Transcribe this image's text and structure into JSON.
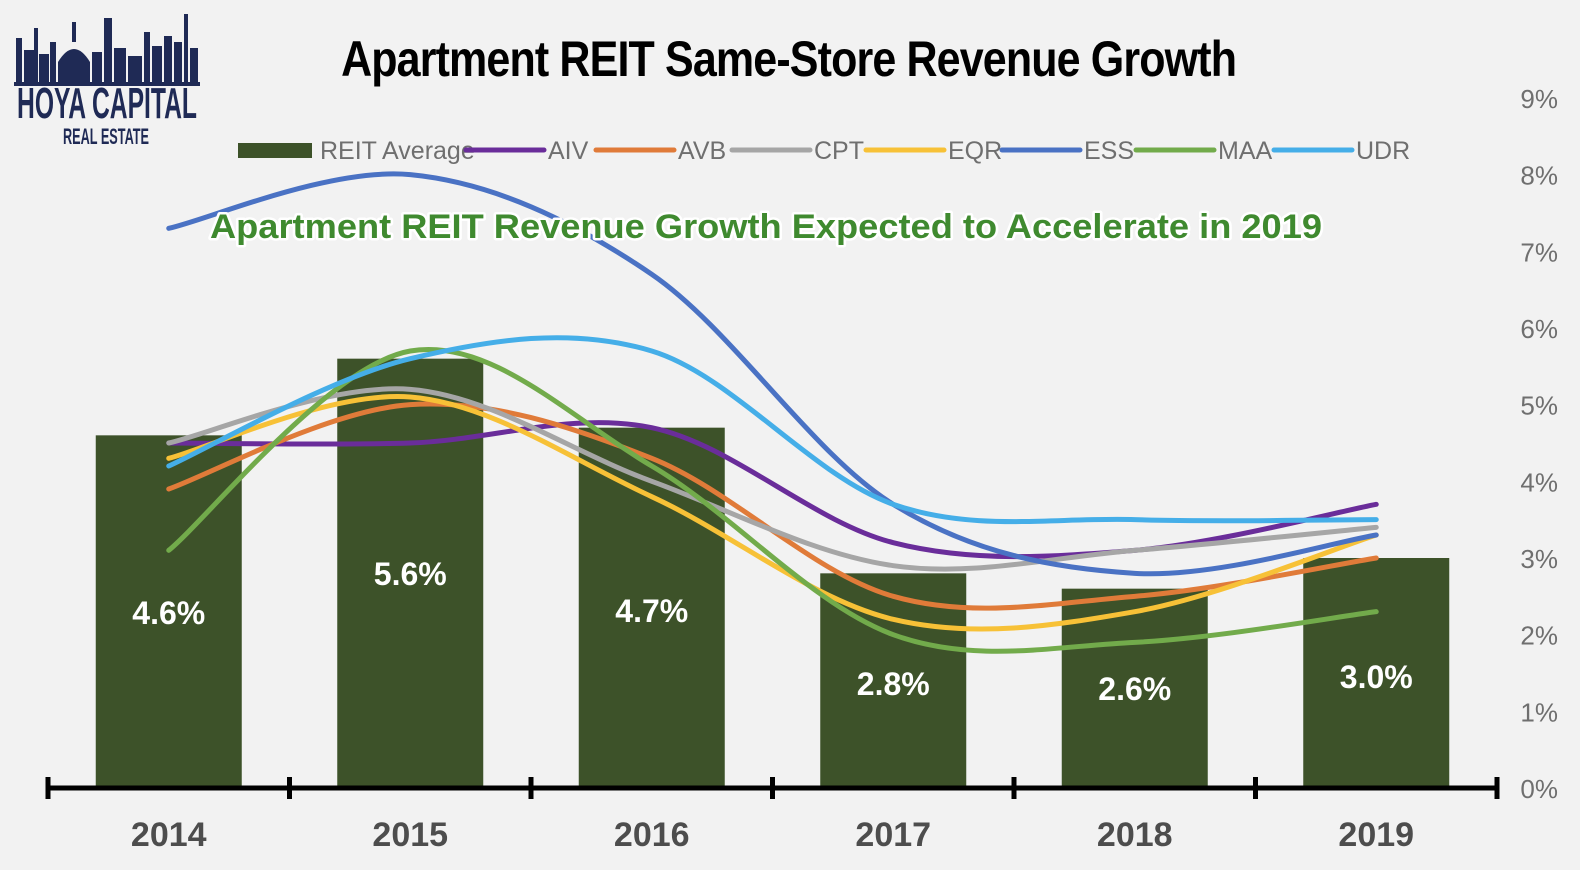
{
  "brand": {
    "name": "HOYA CAPITAL",
    "tagline": "REAL ESTATE"
  },
  "chart_data": {
    "type": "bar",
    "title": "Apartment REIT Same-Store Revenue Growth",
    "subtitle": "Apartment REIT Revenue Growth Expected to Accelerate in 2019",
    "categories": [
      "2014",
      "2015",
      "2016",
      "2017",
      "2018",
      "2019"
    ],
    "bar_series": {
      "name": "REIT Average",
      "values": [
        4.6,
        5.6,
        4.7,
        2.8,
        2.6,
        3.0
      ],
      "labels": [
        "4.6%",
        "5.6%",
        "4.7%",
        "2.8%",
        "2.6%",
        "3.0%"
      ],
      "color": "#3d5229"
    },
    "line_series": [
      {
        "name": "AIV",
        "values": [
          4.5,
          4.5,
          4.7,
          3.2,
          3.1,
          3.7
        ],
        "color": "#6a2d9a"
      },
      {
        "name": "AVB",
        "values": [
          3.9,
          5.0,
          4.3,
          2.5,
          2.5,
          3.0
        ],
        "color": "#e07b39"
      },
      {
        "name": "CPT",
        "values": [
          4.5,
          5.2,
          4.0,
          2.9,
          3.1,
          3.4
        ],
        "color": "#a6a6a6"
      },
      {
        "name": "EQR",
        "values": [
          4.3,
          5.1,
          3.8,
          2.2,
          2.3,
          3.3
        ],
        "color": "#f7c137"
      },
      {
        "name": "ESS",
        "values": [
          7.3,
          8.0,
          6.7,
          3.7,
          2.8,
          3.3
        ],
        "color": "#4a72c4"
      },
      {
        "name": "MAA",
        "values": [
          3.1,
          5.7,
          4.2,
          2.0,
          1.9,
          2.3
        ],
        "color": "#72ab4b"
      },
      {
        "name": "UDR",
        "values": [
          4.2,
          5.6,
          5.7,
          3.7,
          3.5,
          3.5
        ],
        "color": "#45aee8"
      }
    ],
    "y_axis": {
      "side": "right",
      "range": [
        0,
        9
      ],
      "ticks": [
        "0%",
        "1%",
        "2%",
        "3%",
        "4%",
        "5%",
        "6%",
        "7%",
        "8%",
        "9%"
      ]
    },
    "grid": false,
    "legend": "top"
  }
}
